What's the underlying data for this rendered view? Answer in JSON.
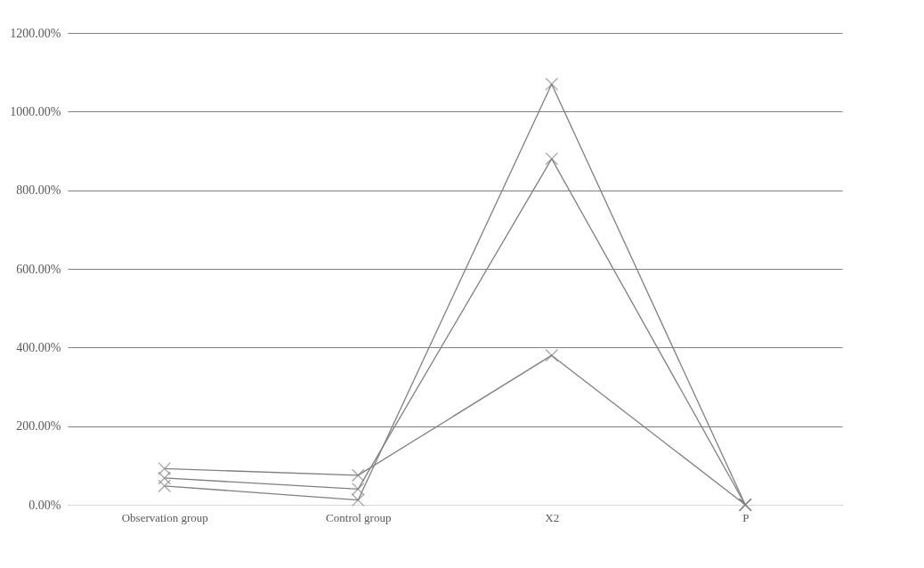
{
  "chart_data": {
    "type": "line",
    "categories": [
      "Observation group",
      "Control group",
      "X2",
      "P"
    ],
    "series": [
      {
        "color": "#7f7f7f",
        "values": [
          92,
          75,
          380,
          0
        ]
      },
      {
        "color": "#7f7f7f",
        "values": [
          68,
          40,
          880,
          0
        ]
      },
      {
        "color": "#7f7f7f",
        "values": [
          48,
          12,
          1070,
          0
        ]
      }
    ],
    "ylim": [
      0,
      1200
    ],
    "yticks": [
      {
        "value": 0,
        "label": "0.00%"
      },
      {
        "value": 200,
        "label": "200.00%"
      },
      {
        "value": 400,
        "label": "400.00%"
      },
      {
        "value": 600,
        "label": "600.00%"
      },
      {
        "value": 800,
        "label": "800.00%"
      },
      {
        "value": 1000,
        "label": "1000.00%"
      },
      {
        "value": 1200,
        "label": "1200.00%"
      }
    ],
    "grid": "y",
    "marker": "cross",
    "line_style": "solid",
    "legend": false
  }
}
